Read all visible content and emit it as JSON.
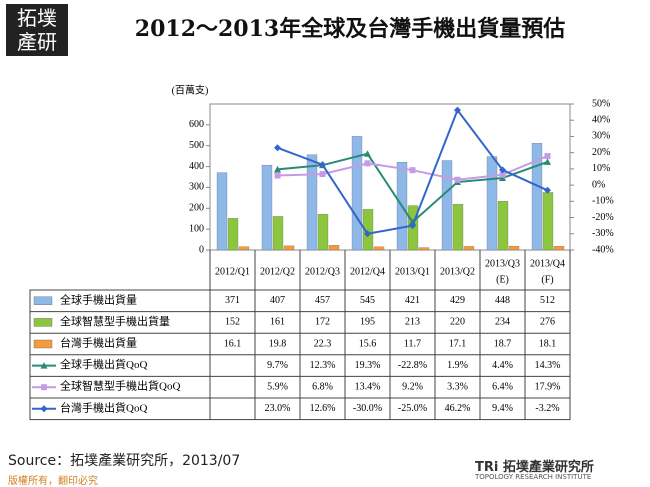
{
  "logo": "拓墣產研",
  "chart_data": {
    "type": "bar",
    "title": "2012～2013年全球及台灣手機出貨量預估",
    "y_label": "(百萬支)",
    "categories": [
      "2012/Q1",
      "2012/Q2",
      "2012/Q3",
      "2012/Q4",
      "2013/Q1",
      "2013/Q2",
      "2013/Q3 (E)",
      "2013/Q4 (F)"
    ],
    "ylim": [
      0,
      700
    ],
    "yticks": [
      0,
      100,
      200,
      300,
      400,
      500,
      600
    ],
    "y2lim": [
      -40,
      50
    ],
    "y2ticks": [
      {
        "value": -40,
        "label": "-40%"
      },
      {
        "value": -30,
        "label": "-30%"
      },
      {
        "value": -20,
        "label": "-20%"
      },
      {
        "value": -10,
        "label": "-10%"
      },
      {
        "value": 0,
        "label": "0%"
      },
      {
        "value": 10,
        "label": "10%"
      },
      {
        "value": 20,
        "label": "20%"
      },
      {
        "value": 30,
        "label": "30%"
      },
      {
        "value": 40,
        "label": "40%"
      },
      {
        "value": 50,
        "label": "50%"
      }
    ],
    "grid": false,
    "series": [
      {
        "name": "全球手機出貨量",
        "type": "bar",
        "color": "#8db8e8",
        "values": [
          371,
          407,
          457,
          545,
          421,
          429,
          448,
          512
        ]
      },
      {
        "name": "全球智慧型手機出貨量",
        "type": "bar",
        "color": "#8cc63e",
        "values": [
          152,
          161,
          172,
          195,
          213,
          220,
          234,
          276
        ]
      },
      {
        "name": "台灣手機出貨量",
        "type": "bar",
        "color": "#f39a3a",
        "values": [
          16.1,
          19.8,
          22.3,
          15.6,
          11.7,
          17.1,
          18.7,
          18.1
        ]
      },
      {
        "name": "全球手機出貨QoQ",
        "type": "line",
        "axis": "y2",
        "color": "#2a8a78",
        "marker": "triangle",
        "values": [
          null,
          9.7,
          12.3,
          19.3,
          -22.8,
          1.9,
          4.4,
          14.3
        ],
        "value_labels": [
          null,
          "9.7%",
          "12.3%",
          "19.3%",
          "-22.8%",
          "1.9%",
          "4.4%",
          "14.3%"
        ]
      },
      {
        "name": "全球智慧型手機出貨QoQ",
        "type": "line",
        "axis": "y2",
        "color": "#c39be6",
        "marker": "square",
        "values": [
          null,
          5.9,
          6.8,
          13.4,
          9.2,
          3.3,
          6.4,
          17.9
        ],
        "value_labels": [
          null,
          "5.9%",
          "6.8%",
          "13.4%",
          "9.2%",
          "3.3%",
          "6.4%",
          "17.9%"
        ]
      },
      {
        "name": "台灣手機出貨QoQ",
        "type": "line",
        "axis": "y2",
        "color": "#3366cc",
        "marker": "diamond",
        "values": [
          null,
          23.0,
          12.6,
          -30.0,
          -25.0,
          46.2,
          9.4,
          -3.2
        ],
        "value_labels": [
          null,
          "23.0%",
          "12.6%",
          "-30.0%",
          "-25.0%",
          "46.2%",
          "9.4%",
          "-3.2%"
        ]
      }
    ],
    "source": "Source：拓墣產業研究所，2013/07"
  },
  "footer": {
    "copyright": "版權所有，翻印必究",
    "brand": "TRi 拓墣產業研究所",
    "brand_sub": "TOPOLOGY RESEARCH INSTITUTE"
  }
}
